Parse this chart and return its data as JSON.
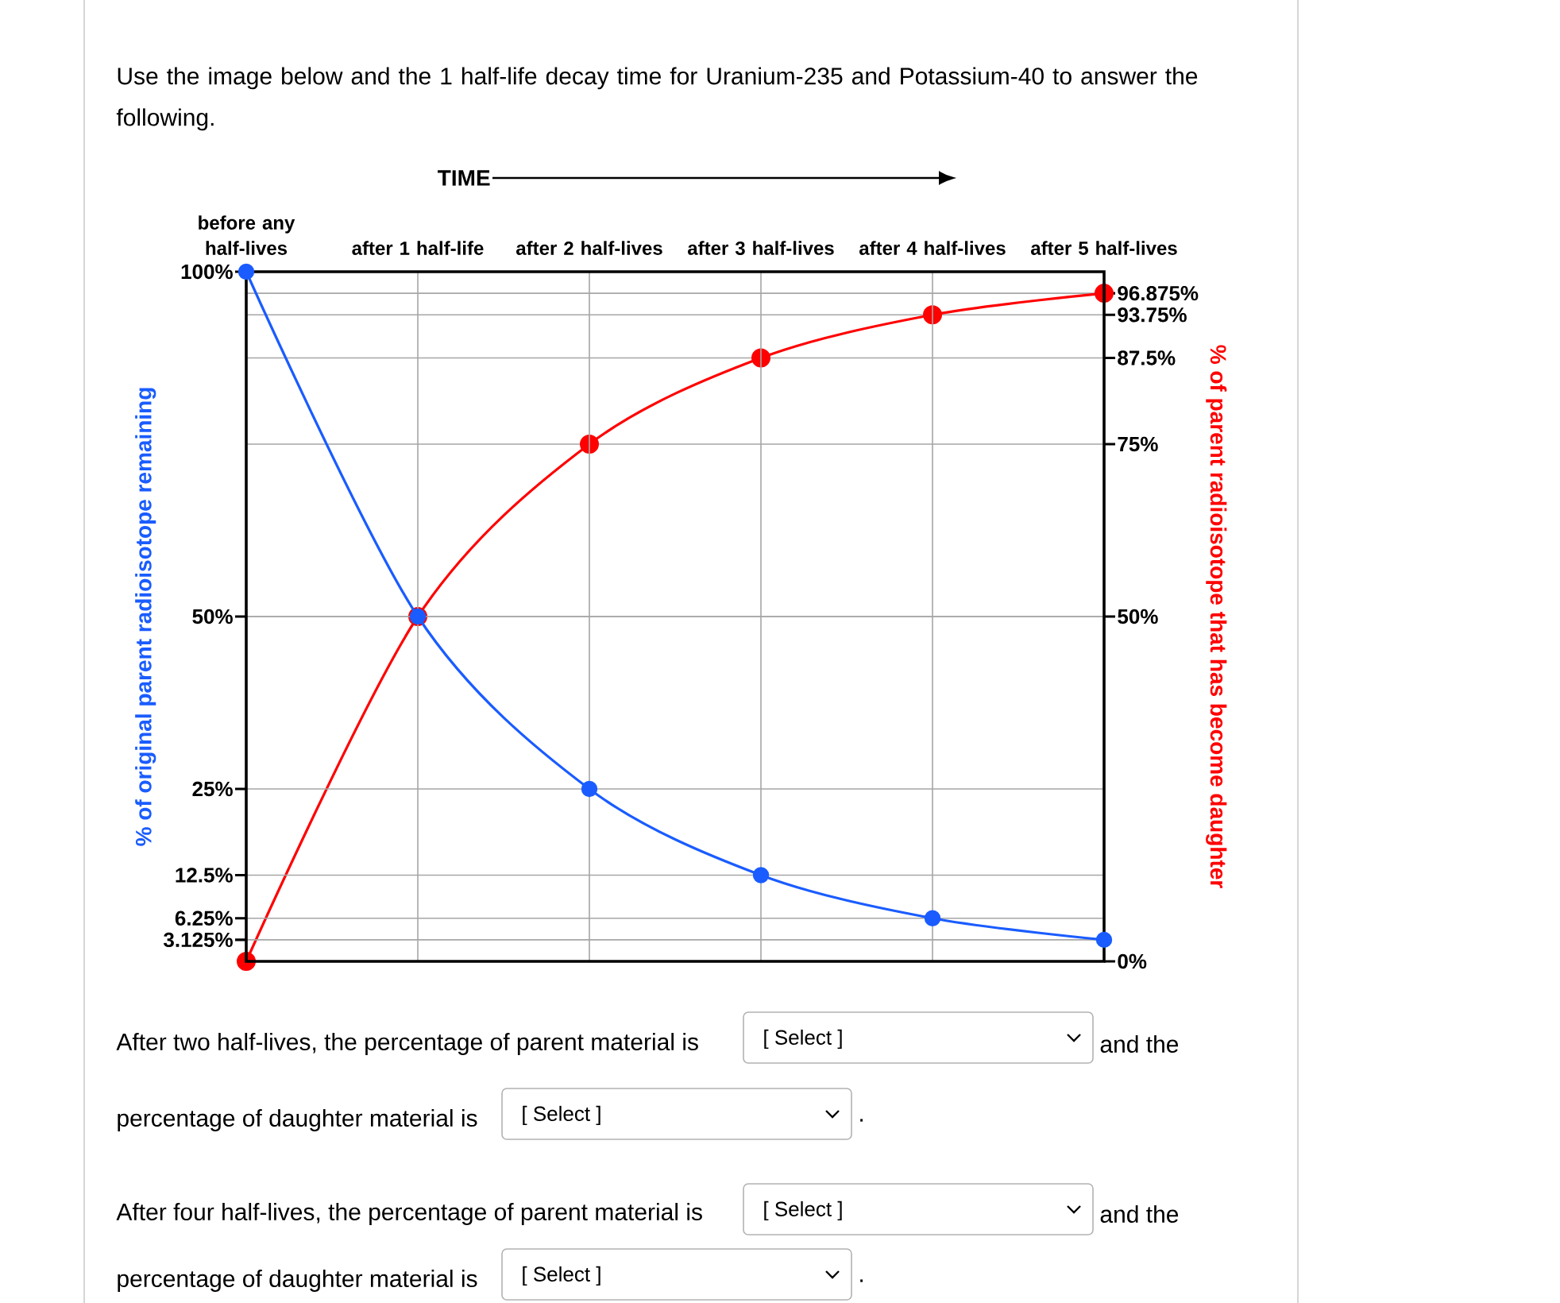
{
  "chart_data": {
    "type": "line",
    "title": "Use the image below and the 1 half-life decay time for Uranium-235 and Potassium-40 to answer the following.",
    "xlabel": "TIME",
    "ylabel": "% of original parent radioisotope remaining",
    "y2label": "% of parent radioisotope that has become daughter",
    "categories": [
      "before any half-lives",
      "after 1 half-life",
      "after 2 half-lives",
      "after 3 half-lives",
      "after 4 half-lives",
      "after 5 half-lives"
    ],
    "series": [
      {
        "color": "#1a5cff",
        "values": [
          100,
          50,
          25,
          12.5,
          6.25,
          3.125
        ]
      },
      {
        "color": "#ff0000",
        "axis": "y2",
        "values": [
          0,
          50,
          75,
          87.5,
          93.75,
          96.875
        ]
      }
    ],
    "ylim": [
      0,
      100
    ],
    "yticks": [
      {
        "value": 3.125,
        "label": "3.125%"
      },
      {
        "value": 6.25,
        "label": "6.25%"
      },
      {
        "value": 12.5,
        "label": "12.5%"
      },
      {
        "value": 25,
        "label": "25%"
      },
      {
        "value": 50,
        "label": "50%"
      },
      {
        "value": 100,
        "label": "100%"
      }
    ],
    "y2lim": [
      0,
      100
    ],
    "y2ticks": [
      {
        "value": 0,
        "label": "0%"
      },
      {
        "value": 50,
        "label": "50%"
      },
      {
        "value": 75,
        "label": "75%"
      },
      {
        "value": 87.5,
        "label": "87.5%"
      },
      {
        "value": 93.75,
        "label": "93.75%"
      },
      {
        "value": 96.875,
        "label": "96.875%"
      }
    ],
    "grid": true,
    "marker": "circle",
    "line_style": "solid",
    "annotations": [
      "After two half-lives, the percentage of parent material is",
      "[ Select ]",
      "and the",
      "percentage of daughter material is",
      "[ Select ]",
      ".",
      "After four half-lives, the percentage of parent material is",
      "[ Select ]",
      "and the",
      "percentage of daughter material is",
      "[ Select ]",
      "."
    ]
  }
}
